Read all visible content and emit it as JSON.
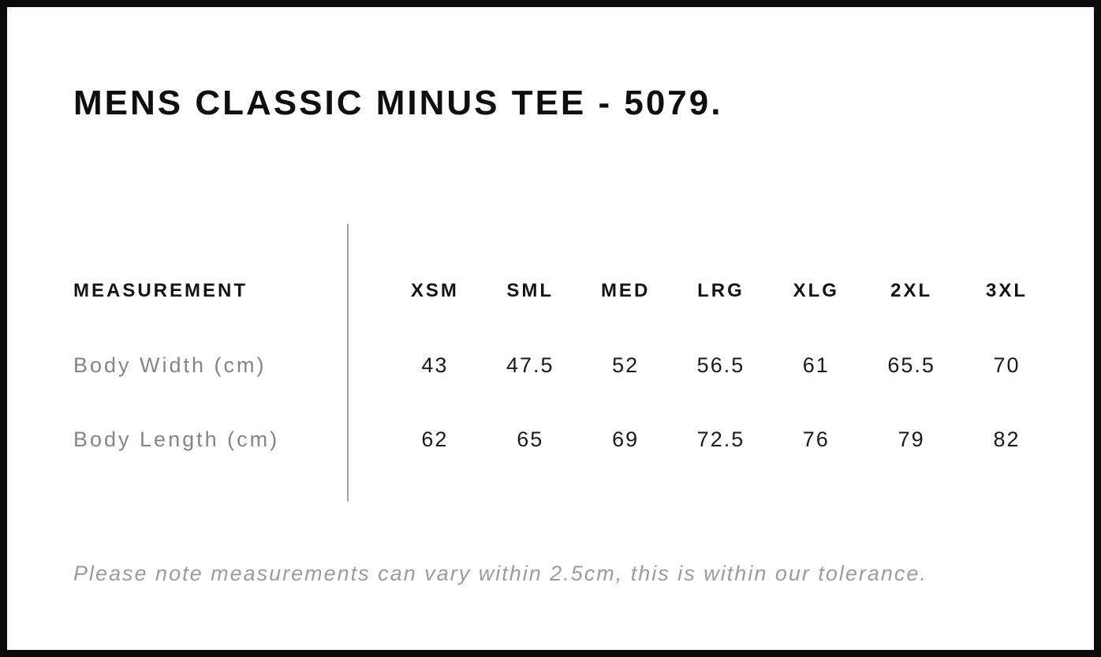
{
  "header": {
    "title": "MENS CLASSIC MINUS TEE - 5079."
  },
  "chart_data": {
    "type": "table",
    "title": "MENS CLASSIC MINUS TEE - 5079.",
    "columns": [
      "MEASUREMENT",
      "XSM",
      "SML",
      "MED",
      "LRG",
      "XLG",
      "2XL",
      "3XL"
    ],
    "rows": [
      {
        "label": "Body Width (cm)",
        "values": [
          "43",
          "47.5",
          "52",
          "56.5",
          "61",
          "65.5",
          "70"
        ]
      },
      {
        "label": "Body Length (cm)",
        "values": [
          "62",
          "65",
          "69",
          "72.5",
          "76",
          "79",
          "82"
        ]
      }
    ],
    "footnote": "Please note measurements can vary within 2.5cm, this is within our tolerance.",
    "layout": {
      "label_column_divider": "vertical gray rule between label column and size columns",
      "grid": "off",
      "value_alignment": "center"
    }
  },
  "colors": {
    "frame_border": "#0b0b0b",
    "text_primary": "#0f0f0f",
    "row_label_gray": "#858585",
    "note_gray": "#9c9c9c",
    "divider_gray": "#a3a3a3",
    "background": "#ffffff"
  }
}
